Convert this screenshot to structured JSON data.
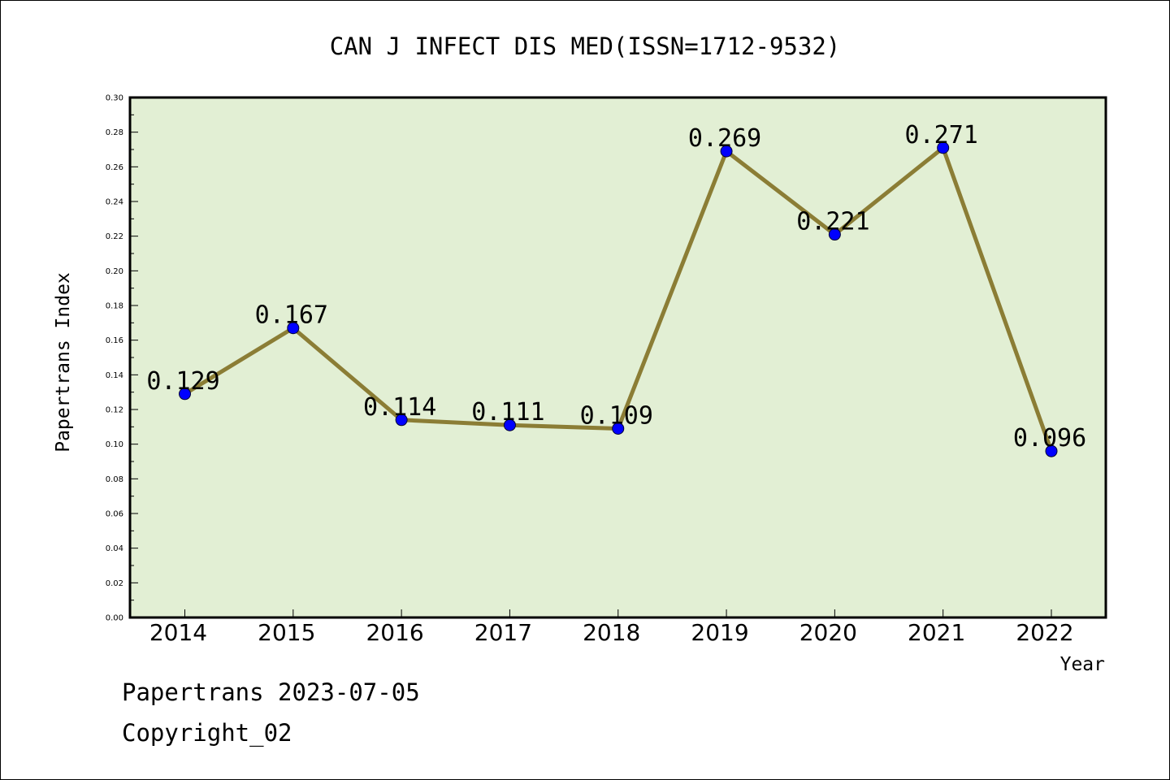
{
  "chart_data": {
    "type": "line",
    "title": "CAN J INFECT DIS MED(ISSN=1712-9532)",
    "xlabel": "Year",
    "ylabel": "Papertrans Index",
    "categories": [
      "2014",
      "2015",
      "2016",
      "2017",
      "2018",
      "2019",
      "2020",
      "2021",
      "2022"
    ],
    "values": [
      0.129,
      0.167,
      0.114,
      0.111,
      0.109,
      0.269,
      0.221,
      0.271,
      0.096
    ],
    "data_labels": [
      "0.129",
      "0.167",
      "0.114",
      "0.111",
      "0.109",
      "0.269",
      "0.221",
      "0.271",
      "0.096"
    ],
    "ylim": [
      0,
      0.3
    ],
    "yticks": [
      "0.00",
      "0.02",
      "0.04",
      "0.06",
      "0.08",
      "0.10",
      "0.12",
      "0.14",
      "0.16",
      "0.18",
      "0.20",
      "0.22",
      "0.24",
      "0.26",
      "0.28",
      "0.30"
    ],
    "grid": false,
    "colors": {
      "plot_background": "#e2efd4",
      "line": "#8b7d35",
      "marker": "#0000ff"
    }
  },
  "footer": {
    "line1": "Papertrans 2023-07-05",
    "line2": "Copyright_02"
  }
}
